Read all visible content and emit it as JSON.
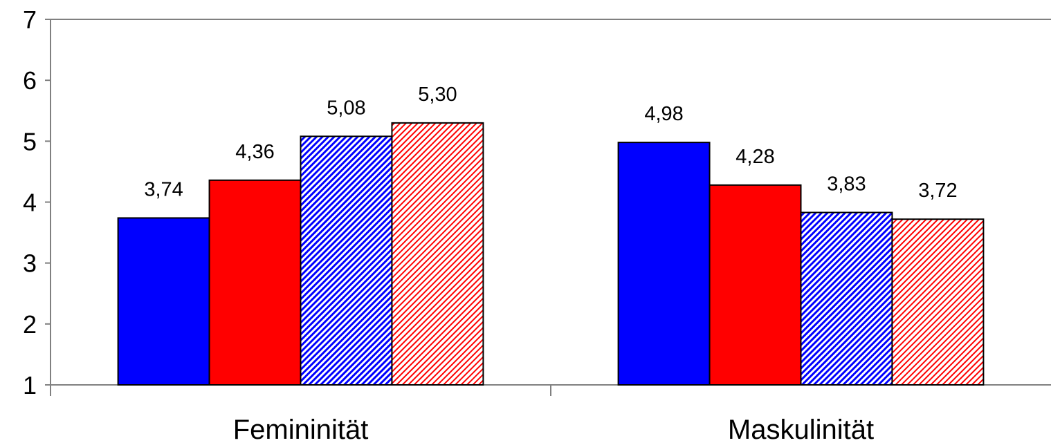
{
  "chart_data": {
    "type": "bar",
    "categories": [
      "Femininität",
      "Maskulinität"
    ],
    "ylim": [
      1,
      7
    ],
    "yticks": [
      1,
      2,
      3,
      4,
      5,
      6,
      7
    ],
    "grid": false,
    "series": [
      {
        "values": [
          3.74,
          4.98
        ],
        "labels": [
          "3,74",
          "4,98"
        ],
        "color": "#0000ff",
        "pattern": "solid"
      },
      {
        "values": [
          4.36,
          4.28
        ],
        "labels": [
          "4,36",
          "4,28"
        ],
        "color": "#ff0000",
        "pattern": "solid"
      },
      {
        "values": [
          5.08,
          3.83
        ],
        "labels": [
          "5,08",
          "3,83"
        ],
        "color": "#0000ff",
        "pattern": "hatched"
      },
      {
        "values": [
          5.3,
          3.72
        ],
        "labels": [
          "5,30",
          "3,72"
        ],
        "color": "#ff0000",
        "pattern": "hatched"
      }
    ]
  }
}
